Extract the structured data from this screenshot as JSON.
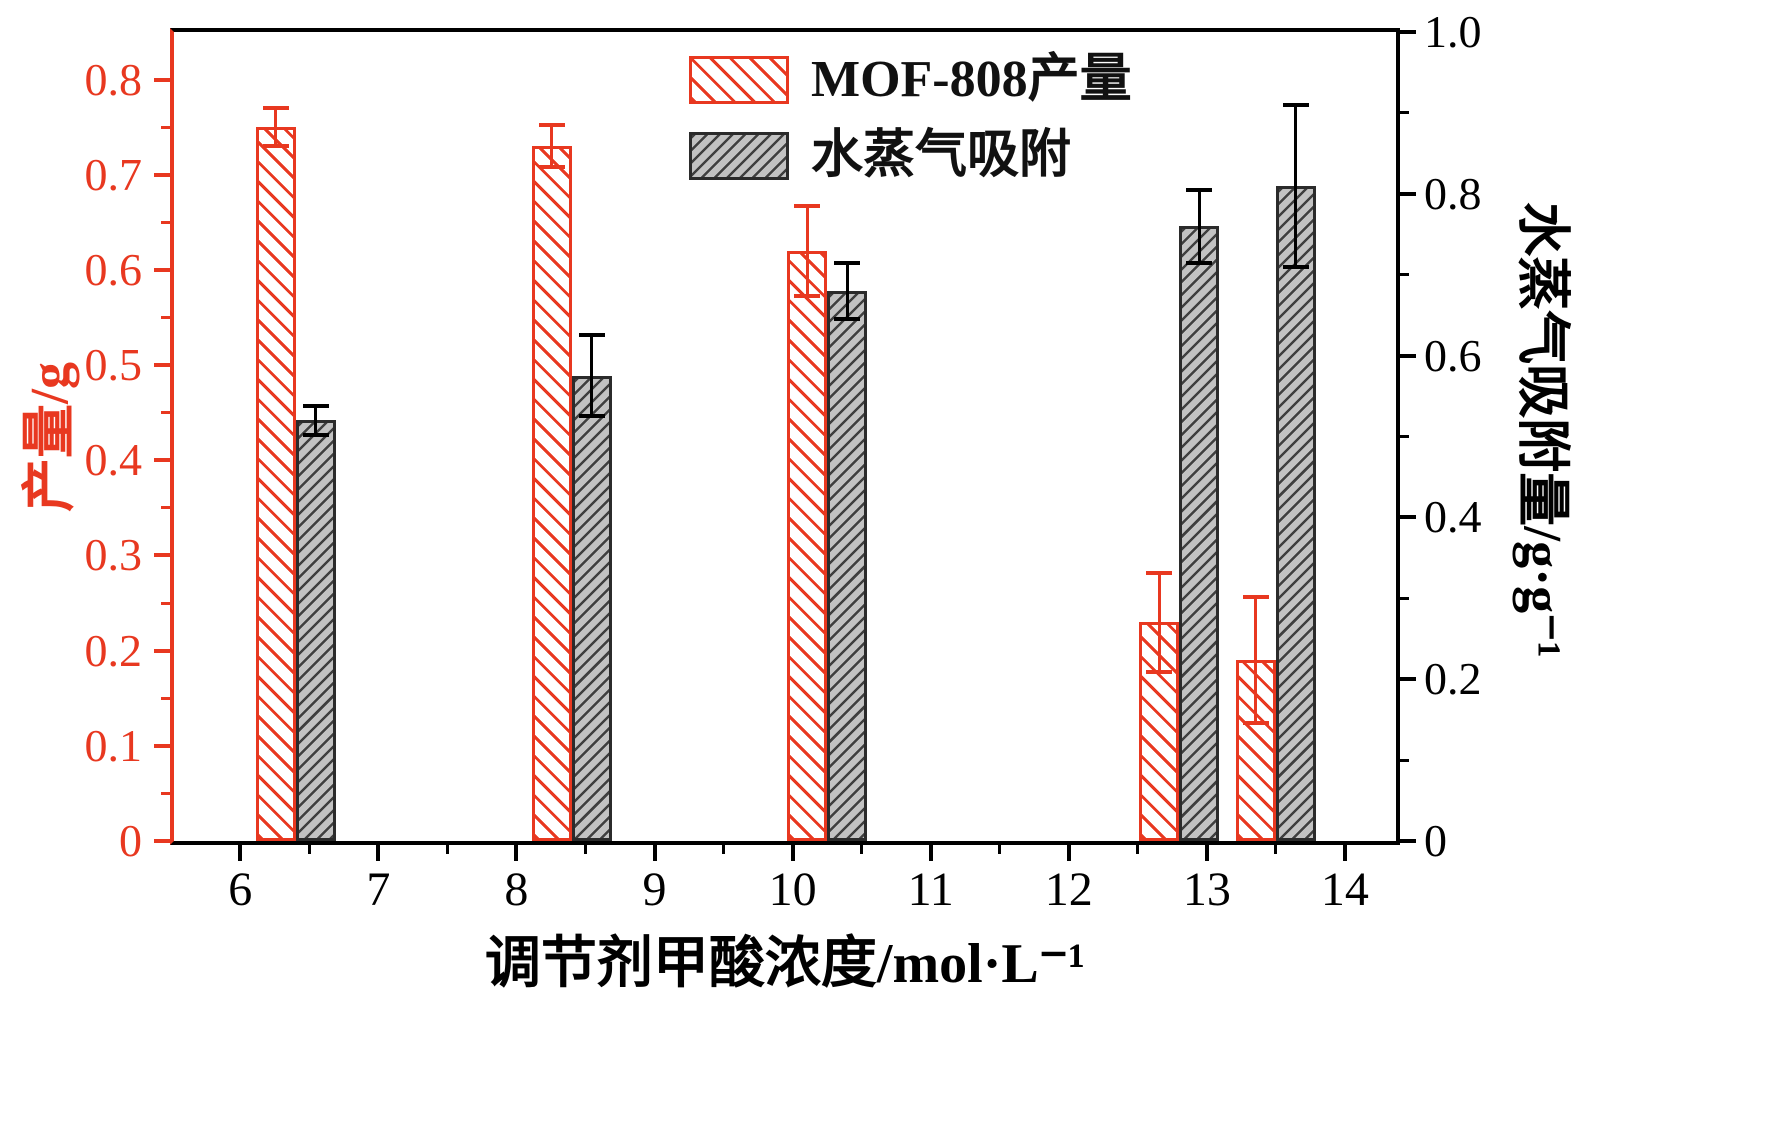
{
  "page": {
    "background": "#ffffff"
  },
  "chart_data": {
    "type": "bar",
    "title": "",
    "xlabel": "调节剂甲酸浓度/mol·L⁻¹",
    "ylabel_left": "产量/g",
    "ylabel_right": "水蒸气吸附量/g·g⁻¹",
    "legend_entries": [
      "MOF-808产量",
      "水蒸气吸附"
    ],
    "legend_position": "top-center-inside",
    "grid": false,
    "x": [
      6.4,
      8.4,
      10.25,
      12.8,
      13.5
    ],
    "series": [
      {
        "name": "MOF-808产量",
        "axis": "left",
        "color": "#e83820",
        "fill": "#ffffff",
        "hatch": "\\",
        "values": [
          0.75,
          0.73,
          0.62,
          0.23,
          0.19
        ],
        "errors": [
          0.02,
          0.022,
          0.047,
          0.052,
          0.066
        ]
      },
      {
        "name": "水蒸气吸附",
        "axis": "right",
        "color": "#2b2b2b",
        "fill": "#c2c2c2",
        "hatch": "/",
        "values": [
          0.52,
          0.575,
          0.68,
          0.76,
          0.81
        ],
        "errors": [
          0.018,
          0.05,
          0.035,
          0.045,
          0.1
        ]
      }
    ],
    "x_axis": {
      "min": 5.52,
      "max": 14.37,
      "ticks": [
        6,
        7,
        8,
        9,
        10,
        11,
        12,
        13,
        14
      ],
      "tick_labels": [
        "6",
        "7",
        "8",
        "9",
        "10",
        "11",
        "12",
        "13",
        "14"
      ],
      "minor_step": 0.5,
      "color": "#000000"
    },
    "left_axis": {
      "min": 0,
      "max": 0.85,
      "ticks": [
        0,
        0.1,
        0.2,
        0.3,
        0.4,
        0.5,
        0.6,
        0.7,
        0.8
      ],
      "tick_labels": [
        "0",
        "0.1",
        "0.2",
        "0.3",
        "0.4",
        "0.5",
        "0.6",
        "0.7",
        "0.8"
      ],
      "minor_step": 0.05,
      "color": "#e83820"
    },
    "right_axis": {
      "min": 0,
      "max": 1.0,
      "ticks": [
        0,
        0.2,
        0.4,
        0.6,
        0.8,
        1.0
      ],
      "tick_labels": [
        "0",
        "0.2",
        "0.4",
        "0.6",
        "0.8",
        "1.0"
      ],
      "minor_step": 0.1,
      "color": "#000000"
    }
  }
}
